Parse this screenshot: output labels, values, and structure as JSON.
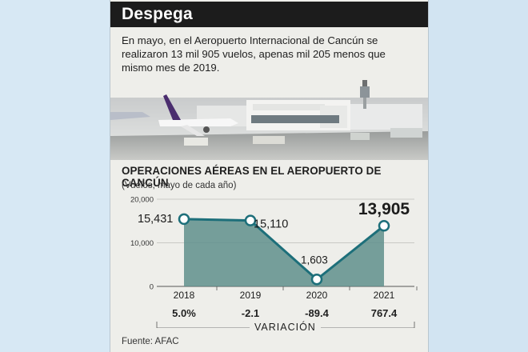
{
  "headline": "Despega",
  "summary": "En mayo, en el Aeropuerto Internacional de Cancún se realizaron 13 mil 905 vuelos, apenas mil 205 menos que mismo mes de 2019.",
  "chart_data": {
    "type": "area",
    "title": "OPERACIONES AÉREAS EN EL AEROPUERTO DE CANCÚN",
    "subtitle": "(Vuelos, mayo de cada año)",
    "categories": [
      "2018",
      "2019",
      "2020",
      "2021"
    ],
    "values": [
      15431,
      15110,
      1603,
      13905
    ],
    "value_labels": [
      "15,431",
      "15,110",
      "1,603",
      "13,905"
    ],
    "ylim": [
      0,
      20000
    ],
    "yticks": [
      0,
      10000,
      20000
    ],
    "ytick_labels": [
      "0",
      "10,000",
      "20,000"
    ],
    "grid": true,
    "colors": {
      "line": "#1d6f7a",
      "fill": "#5f8f8c",
      "marker_fill": "#ffffff"
    },
    "variation": {
      "label": "VARIACIÓN",
      "values": [
        "5.0%",
        "-2.1",
        "-89.4",
        "767.4"
      ]
    }
  },
  "source": "Fuente: AFAC"
}
